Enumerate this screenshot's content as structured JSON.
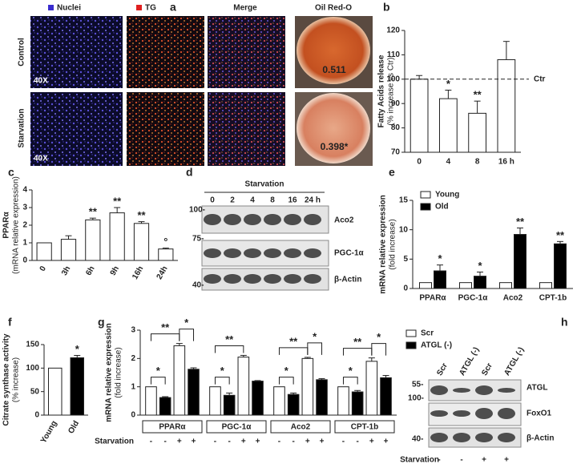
{
  "panel_a": {
    "letter": "a",
    "columns": [
      "Nuclei",
      "TG",
      "Merge",
      "Oil Red-O"
    ],
    "rows": [
      "Control",
      "Starvation"
    ],
    "magnification": "40X",
    "oil_values": [
      "0.511",
      "0.398*"
    ]
  },
  "panel_d": {
    "letter": "d",
    "condition": "Starvation",
    "lanes": [
      "0",
      "2",
      "4",
      "8",
      "16",
      "24 h"
    ],
    "markers": [
      "100-",
      "75-",
      "40-"
    ],
    "proteins": [
      "Aco2",
      "PGC-1α",
      "β-Actin"
    ]
  },
  "panel_h": {
    "letter": "h",
    "lanes": [
      "Scr",
      "ATGL (-)",
      "Scr",
      "ATGL (-)"
    ],
    "markers": [
      "55-",
      "100-",
      "40-"
    ],
    "proteins": [
      "ATGL",
      "FoxO1",
      "β-Actin"
    ],
    "condition": "Starvation",
    "condition_signs": [
      "-",
      "-",
      "+",
      "+"
    ]
  },
  "chart_data": [
    {
      "panel": "b",
      "type": "bar",
      "ylabel": "Fatty Acids release",
      "ylabel_sub": "(% increase vs Ctr)",
      "categories": [
        "0",
        "4",
        "8",
        "16 h"
      ],
      "values": [
        100,
        92,
        86,
        108
      ],
      "errors": [
        1.5,
        3.5,
        5,
        7.5
      ],
      "annotations": [
        null,
        "*",
        "**",
        null
      ],
      "color": "#ffffff",
      "reference": {
        "value": 100,
        "label": "Ctr"
      },
      "ylim": [
        70,
        120
      ],
      "yticks": [
        70,
        80,
        90,
        100,
        110,
        120
      ]
    },
    {
      "panel": "c",
      "type": "bar",
      "ylabel": "PPARα",
      "ylabel_sub": "(mRNA relative expression)",
      "categories": [
        "0",
        "3h",
        "6h",
        "9h",
        "16h",
        "24h"
      ],
      "values": [
        1,
        1.2,
        2.3,
        2.7,
        2.1,
        0.65
      ],
      "errors": [
        null,
        0.2,
        0.1,
        0.3,
        0.1,
        0.05
      ],
      "annotations": [
        null,
        null,
        "**",
        "**",
        "**",
        "°"
      ],
      "color": "#ffffff",
      "ylim": [
        0,
        4
      ],
      "yticks": [
        0,
        1,
        2,
        3,
        4
      ]
    },
    {
      "panel": "e",
      "type": "grouped-bar",
      "ylabel": "mRNA relative expression",
      "ylabel_sub": "(fold increase)",
      "categories": [
        "PPARα",
        "PGC-1α",
        "Aco2",
        "CPT-1b"
      ],
      "series": [
        {
          "name": "Young",
          "color": "#ffffff",
          "values": [
            1,
            1,
            1,
            1
          ]
        },
        {
          "name": "Old",
          "color": "#000000",
          "values": [
            3,
            2.1,
            9.2,
            7.6
          ],
          "errors": [
            1,
            0.7,
            1.1,
            0.4
          ],
          "annotations": [
            "*",
            "*",
            "**",
            "**"
          ]
        }
      ],
      "ylim": [
        0,
        15
      ],
      "yticks": [
        0,
        5,
        10,
        15
      ],
      "legend": "top-left"
    },
    {
      "panel": "f",
      "type": "bar",
      "ylabel": "Citrate synthase activity",
      "ylabel_sub": "(% increase)",
      "categories": [
        "Young",
        "Old"
      ],
      "values": [
        100,
        122
      ],
      "errors": [
        null,
        5
      ],
      "annotations": [
        null,
        "*"
      ],
      "colors": [
        "#ffffff",
        "#000000"
      ],
      "ylim": [
        0,
        150
      ],
      "yticks": [
        0,
        50,
        100,
        150
      ]
    },
    {
      "panel": "g",
      "type": "paired-bar",
      "ylabel": "mRNA relative expression",
      "ylabel_sub": "(fold increase)",
      "categories": [
        "PPARα",
        "PGC-1α",
        "Aco2",
        "CPT-1b"
      ],
      "series": [
        {
          "name": "Scr",
          "color": "#ffffff",
          "values": [
            1,
            1,
            1,
            1
          ],
          "starved_values": [
            2.45,
            2.05,
            2.0,
            1.9
          ],
          "starved_errors": [
            0.08,
            0.06,
            0.04,
            0.12
          ]
        },
        {
          "name": "ATGL (-)",
          "color": "#000000",
          "values": [
            0.62,
            0.7,
            0.73,
            0.82
          ],
          "errors": [
            0.03,
            0.08,
            0.05,
            0.05
          ],
          "starved_values": [
            1.62,
            1.2,
            1.25,
            1.32
          ],
          "starved_errors": [
            0.05,
            0.02,
            0.04,
            0.08
          ]
        }
      ],
      "significance": [
        {
          "knockdown": "*",
          "starvation": "**",
          "starved_knockdown": "*"
        },
        {
          "knockdown": "*",
          "starvation": "**"
        },
        {
          "knockdown": "*",
          "starvation": "**",
          "starved_knockdown": "*"
        },
        {
          "knockdown": "*",
          "starvation": "**",
          "starved_knockdown": "*"
        }
      ],
      "condition": "Starvation",
      "condition_signs": [
        "-",
        "-",
        "+",
        "+"
      ],
      "ylim": [
        0,
        3
      ],
      "yticks": [
        0,
        1,
        2,
        3
      ],
      "legend": "top-right"
    }
  ]
}
